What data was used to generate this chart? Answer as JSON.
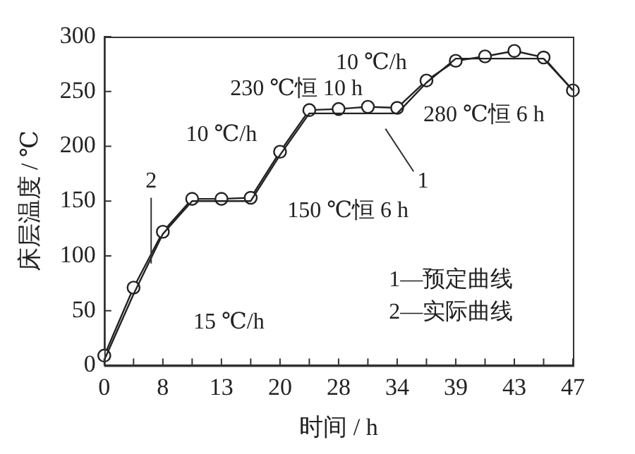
{
  "chart_data": {
    "type": "line",
    "xlabel": "时间 / h",
    "ylabel": "床层温度 / ℃",
    "categories": [
      "0",
      null,
      "8",
      null,
      "13",
      null,
      "20",
      null,
      "28",
      null,
      "34",
      null,
      "39",
      null,
      "43",
      null,
      "47"
    ],
    "ylim": [
      0,
      300
    ],
    "yticks": [
      0,
      50,
      100,
      150,
      200,
      250,
      300
    ],
    "grid": false,
    "legend": false,
    "series": [
      {
        "name": "1",
        "color": "#222222",
        "marker": "none",
        "values": [
          5,
          65,
          120,
          150,
          150,
          150,
          192,
          230,
          230,
          230,
          230,
          258,
          280,
          280,
          280,
          280,
          251
        ]
      },
      {
        "name": "2",
        "color": "#222222",
        "marker": "circle",
        "values": [
          9,
          71,
          122,
          152,
          152,
          153,
          195,
          233,
          234,
          236,
          235,
          260,
          278,
          282,
          287,
          281,
          251
        ]
      }
    ],
    "annotations": [
      "15 ℃/h",
      "150 ℃恒 6 h",
      "10 ℃/h",
      "230 ℃恒 10 h",
      "10 ℃/h",
      "280 ℃恒 6 h",
      "1—预定曲线",
      "2—实际曲线"
    ]
  }
}
